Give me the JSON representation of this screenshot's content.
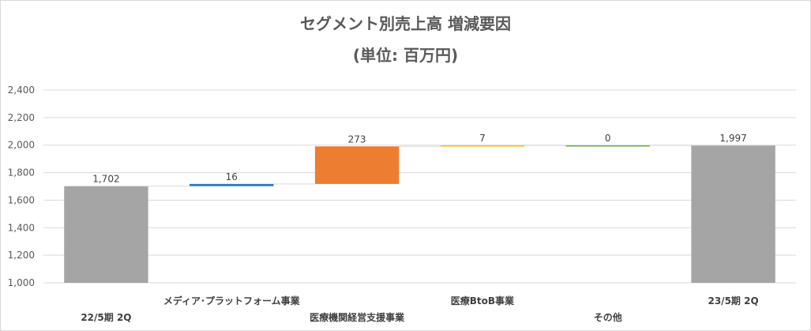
{
  "chart_data": {
    "type": "bar",
    "title": "セグメント別売上高 増減要因",
    "subtitle": "(単位: 百万円)",
    "categories": [
      "22/5期 2Q",
      "メディア･プラットフォーム事業",
      "医療機関経営支援事業",
      "医療BtoB事業",
      "その他",
      "23/5期 2Q"
    ],
    "values": [
      1702,
      16,
      273,
      7,
      0,
      1997
    ],
    "data_labels": [
      "1,702",
      "16",
      "273",
      "7",
      "0",
      "1,997"
    ],
    "bar_kinds": [
      "total",
      "delta",
      "delta",
      "delta",
      "delta",
      "total"
    ],
    "ylim": [
      1000,
      2400
    ],
    "yticks": [
      "1,000",
      "1,200",
      "1,400",
      "1,600",
      "1,800",
      "2,000",
      "2,200",
      "2,400"
    ],
    "ytick_values": [
      1000,
      1200,
      1400,
      1600,
      1800,
      2000,
      2200,
      2400
    ],
    "grid": true,
    "colors": [
      "#a5a5a5",
      "#2e75b6",
      "#ed7d31",
      "#ffc000",
      "#70ad47",
      "#a5a5a5"
    ]
  }
}
